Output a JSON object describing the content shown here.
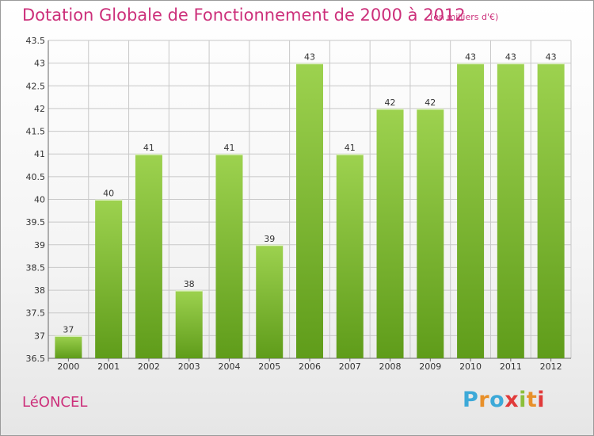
{
  "header": {
    "title": "Dotation Globale de Fonctionnement de 2000 à 2012",
    "unit": "(en milliers d'€)"
  },
  "footer": {
    "commune": "LéONCEL",
    "logo": "Proxiti"
  },
  "colors": {
    "title": "#cc2f7a",
    "bar_light": "#9dd24f",
    "bar_dark": "#5f9c1a",
    "grid": "#c8c8c8"
  },
  "chart_data": {
    "type": "bar",
    "title": "Dotation Globale de Fonctionnement de 2000 à 2012",
    "subtitle": "(en milliers d'€)",
    "xlabel": "",
    "ylabel": "",
    "categories": [
      "2000",
      "2001",
      "2002",
      "2003",
      "2004",
      "2005",
      "2006",
      "2007",
      "2008",
      "2009",
      "2010",
      "2011",
      "2012"
    ],
    "values": [
      37,
      40,
      41,
      38,
      41,
      39,
      43,
      41,
      42,
      42,
      43,
      43,
      43
    ],
    "ylim": [
      36.5,
      43.5
    ],
    "yticks": [
      "36.5",
      "37",
      "37.5",
      "38",
      "38.5",
      "39",
      "39.5",
      "40",
      "40.5",
      "41",
      "41.5",
      "42",
      "42.5",
      "43",
      "43.5"
    ],
    "grid": true,
    "legend": "none"
  }
}
